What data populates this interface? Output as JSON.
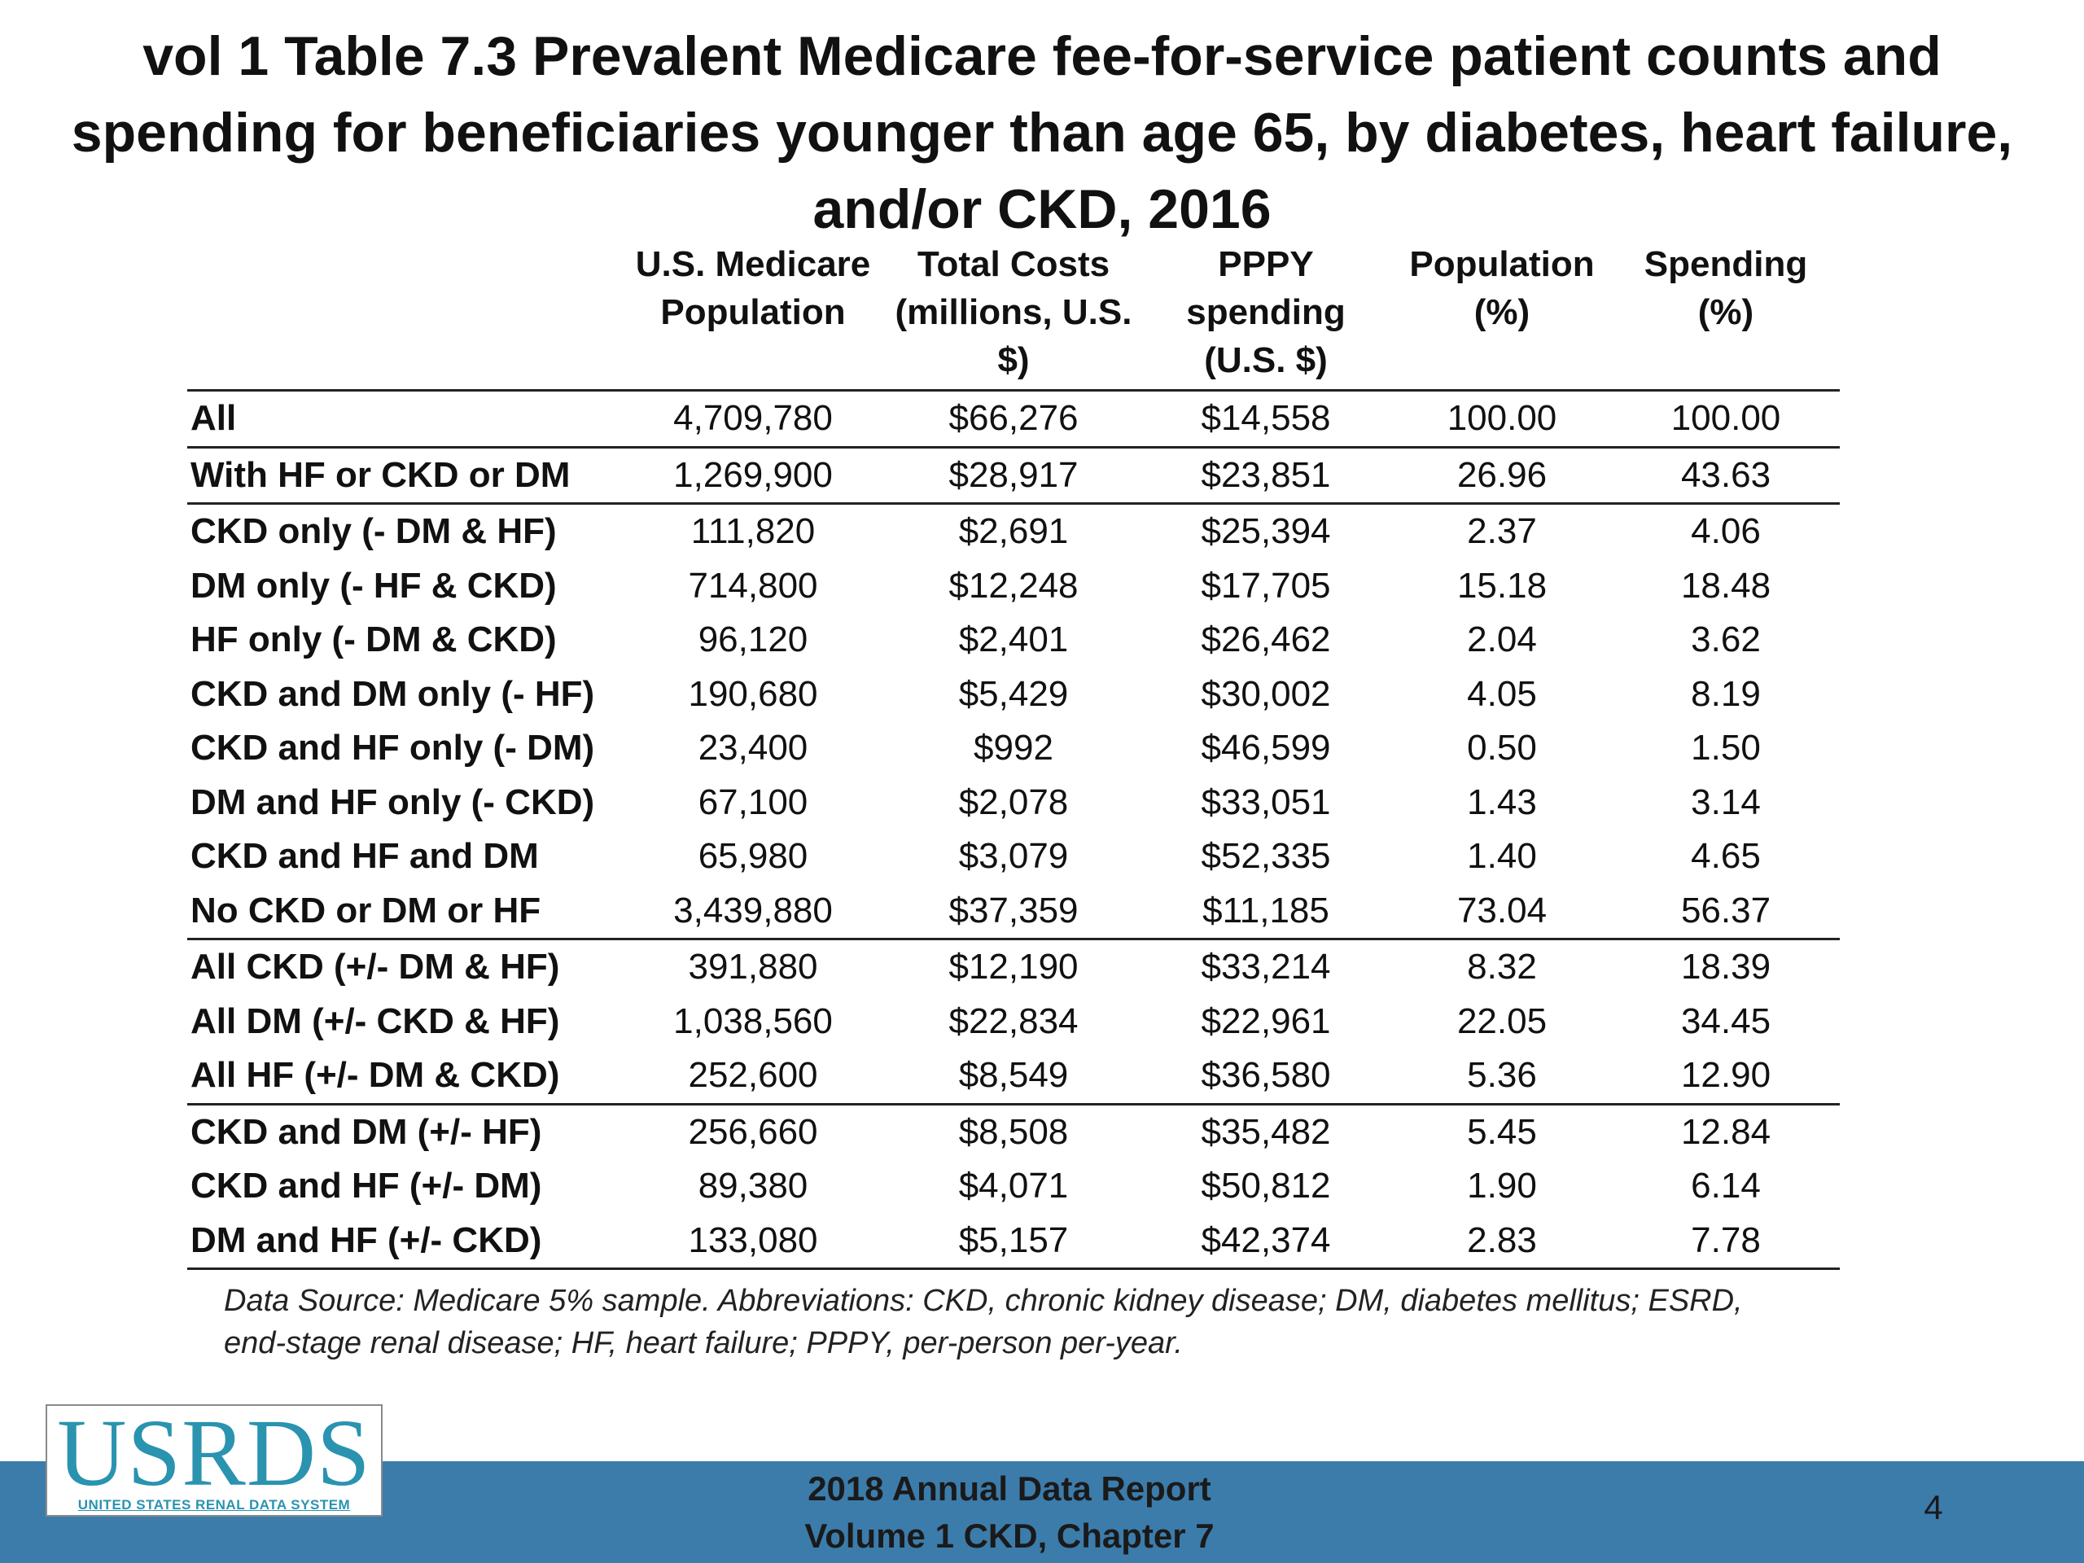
{
  "title": {
    "line1": "vol 1 Table 7.3 Prevalent Medicare fee-for-service patient counts and",
    "line2": "spending for beneficiaries younger than age 65, by diabetes, heart failure,",
    "line3": "and/or CKD, 2016"
  },
  "table": {
    "headers": [
      [
        "U.S. Medicare",
        "Population",
        ""
      ],
      [
        "Total Costs",
        "(millions, U.S. $)",
        ""
      ],
      [
        "PPPY",
        "spending",
        "(U.S. $)"
      ],
      [
        "Population",
        "(%)",
        ""
      ],
      [
        "Spending",
        "(%)",
        ""
      ]
    ],
    "rows": [
      {
        "label": "All",
        "values": [
          "4,709,780",
          "$66,276",
          "$14,558",
          "100.00",
          "100.00"
        ]
      },
      {
        "label": "With HF or CKD or DM",
        "values": [
          "1,269,900",
          "$28,917",
          "$23,851",
          "26.96",
          "43.63"
        ]
      },
      {
        "label": "CKD only (- DM & HF)",
        "values": [
          "111,820",
          "$2,691",
          "$25,394",
          "2.37",
          "4.06"
        ]
      },
      {
        "label": "DM only (- HF & CKD)",
        "values": [
          "714,800",
          "$12,248",
          "$17,705",
          "15.18",
          "18.48"
        ]
      },
      {
        "label": "HF only (- DM & CKD)",
        "values": [
          "96,120",
          "$2,401",
          "$26,462",
          "2.04",
          "3.62"
        ]
      },
      {
        "label": "CKD and DM only (- HF)",
        "values": [
          "190,680",
          "$5,429",
          "$30,002",
          "4.05",
          "8.19"
        ]
      },
      {
        "label": "CKD and HF only (- DM)",
        "values": [
          "23,400",
          "$992",
          "$46,599",
          "0.50",
          "1.50"
        ]
      },
      {
        "label": "DM and HF only (- CKD)",
        "values": [
          "67,100",
          "$2,078",
          "$33,051",
          "1.43",
          "3.14"
        ]
      },
      {
        "label": "CKD and HF and DM",
        "values": [
          "65,980",
          "$3,079",
          "$52,335",
          "1.40",
          "4.65"
        ]
      },
      {
        "label": "No CKD or DM or HF",
        "values": [
          "3,439,880",
          "$37,359",
          "$11,185",
          "73.04",
          "56.37"
        ]
      },
      {
        "label": "All CKD (+/- DM & HF)",
        "values": [
          "391,880",
          "$12,190",
          "$33,214",
          "8.32",
          "18.39"
        ]
      },
      {
        "label": "All DM (+/- CKD & HF)",
        "values": [
          "1,038,560",
          "$22,834",
          "$22,961",
          "22.05",
          "34.45"
        ]
      },
      {
        "label": "All HF (+/- DM & CKD)",
        "values": [
          "252,600",
          "$8,549",
          "$36,580",
          "5.36",
          "12.90"
        ]
      },
      {
        "label": "CKD and DM (+/- HF)",
        "values": [
          "256,660",
          "$8,508",
          "$35,482",
          "5.45",
          "12.84"
        ]
      },
      {
        "label": "CKD and HF (+/- DM)",
        "values": [
          "89,380",
          "$4,071",
          "$50,812",
          "1.90",
          "6.14"
        ]
      },
      {
        "label": "DM and HF (+/- CKD)",
        "values": [
          "133,080",
          "$5,157",
          "$42,374",
          "2.83",
          "7.78"
        ]
      }
    ]
  },
  "source": {
    "line1": "Data Source: Medicare 5% sample. Abbreviations: CKD, chronic kidney disease; DM, diabetes mellitus; ESRD,",
    "line2": "end-stage renal disease; HF, heart failure; PPPY, per-person per-year."
  },
  "logo": {
    "word": "USRDS",
    "subtitle": "UNITED STATES RENAL DATA SYSTEM"
  },
  "footer": {
    "line1": "2018 Annual Data Report",
    "line2": "Volume 1 CKD, Chapter 7",
    "page_number": "4"
  },
  "colors": {
    "footer_bar": "#3c7cab",
    "logo_accent": "#2a93b0"
  }
}
